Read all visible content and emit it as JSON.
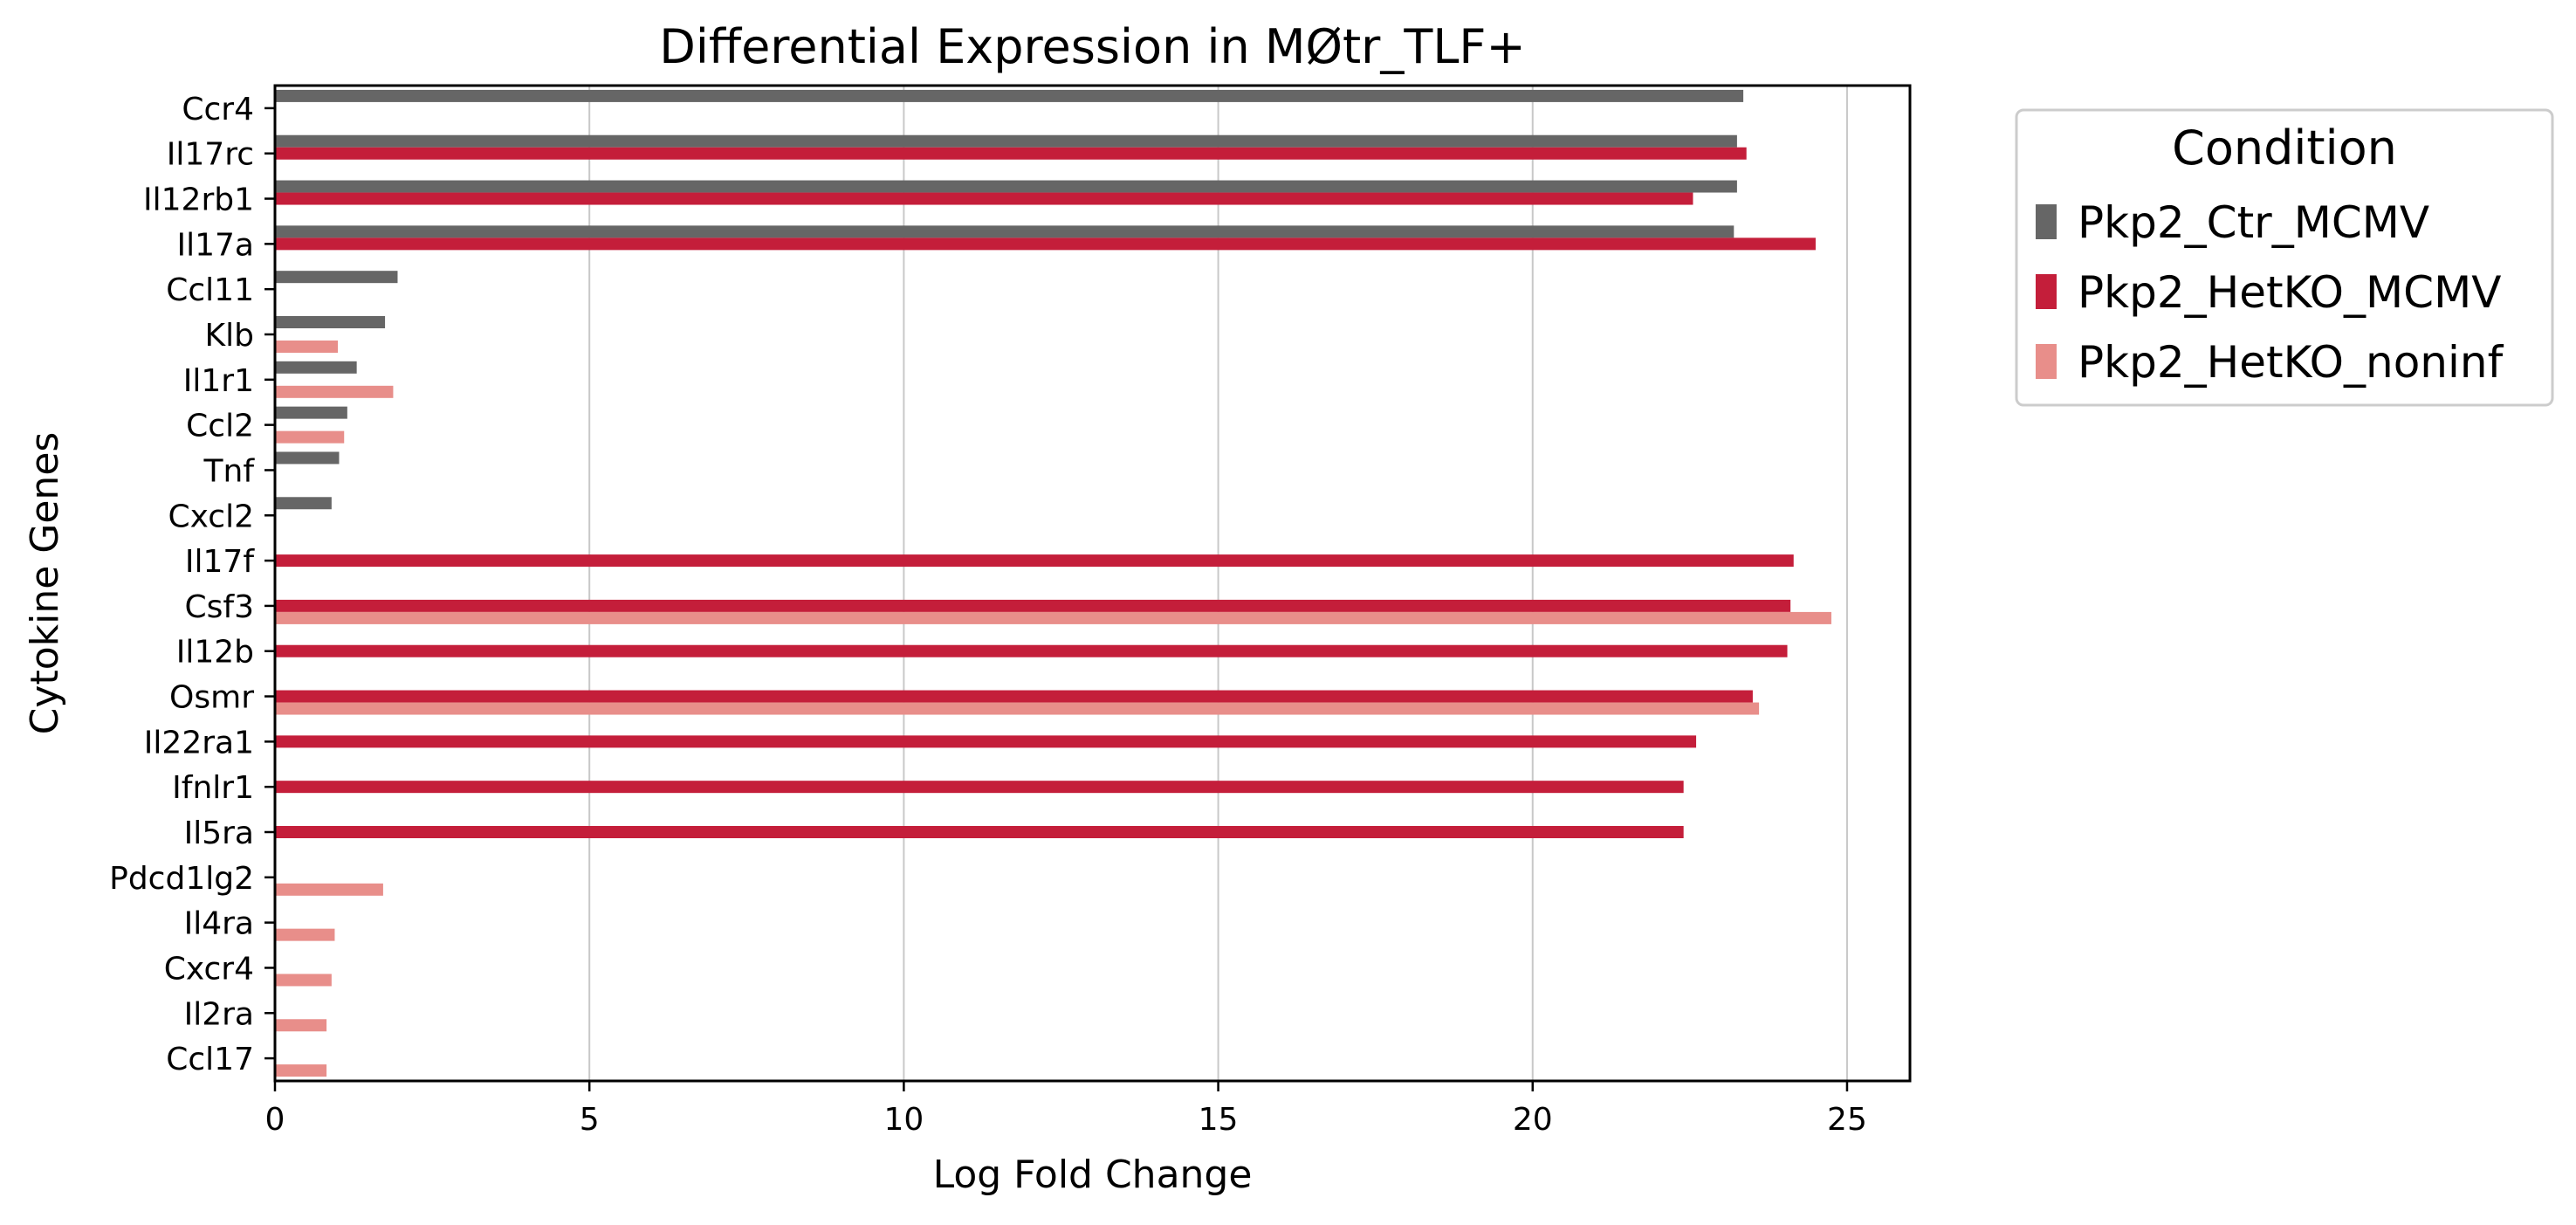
{
  "chart_data": {
    "type": "bar",
    "orientation": "horizontal",
    "title": "Differential Expression in MØtr_TLF+",
    "xlabel": "Log Fold Change",
    "ylabel": "Cytokine Genes",
    "xlim": [
      0,
      26
    ],
    "xticks": [
      0,
      5,
      10,
      15,
      20,
      25
    ],
    "grid": "x",
    "legend_title": "Condition",
    "legend_position": "outside-right",
    "categories": [
      "Ccr4",
      "Il17rc",
      "Il12rb1",
      "Il17a",
      "Ccl11",
      "Klb",
      "Il1r1",
      "Ccl2",
      "Tnf",
      "Cxcl2",
      "Il17f",
      "Csf3",
      "Il12b",
      "Osmr",
      "Il22ra1",
      "Ifnlr1",
      "Il5ra",
      "Pdcd1lg2",
      "Il4ra",
      "Cxcr4",
      "Il2ra",
      "Ccl17"
    ],
    "series": [
      {
        "name": "Pkp2_Ctr_MCMV",
        "color": "#666666",
        "values": [
          23.35,
          23.25,
          23.25,
          23.2,
          1.95,
          1.75,
          1.3,
          1.15,
          1.02,
          0.9,
          null,
          null,
          null,
          null,
          null,
          null,
          null,
          null,
          null,
          null,
          null,
          null
        ]
      },
      {
        "name": "Pkp2_HetKO_MCMV",
        "color": "#c41e3a",
        "values": [
          null,
          23.4,
          22.55,
          24.5,
          null,
          null,
          null,
          null,
          null,
          null,
          24.15,
          24.1,
          24.05,
          23.5,
          22.6,
          22.4,
          22.4,
          null,
          null,
          null,
          null,
          null
        ]
      },
      {
        "name": "Pkp2_HetKO_noninf",
        "color": "#e88e8a",
        "values": [
          null,
          null,
          null,
          null,
          null,
          1.0,
          1.88,
          1.1,
          null,
          null,
          null,
          24.75,
          null,
          23.6,
          null,
          null,
          null,
          1.72,
          0.95,
          0.9,
          0.82,
          0.82
        ]
      }
    ]
  }
}
